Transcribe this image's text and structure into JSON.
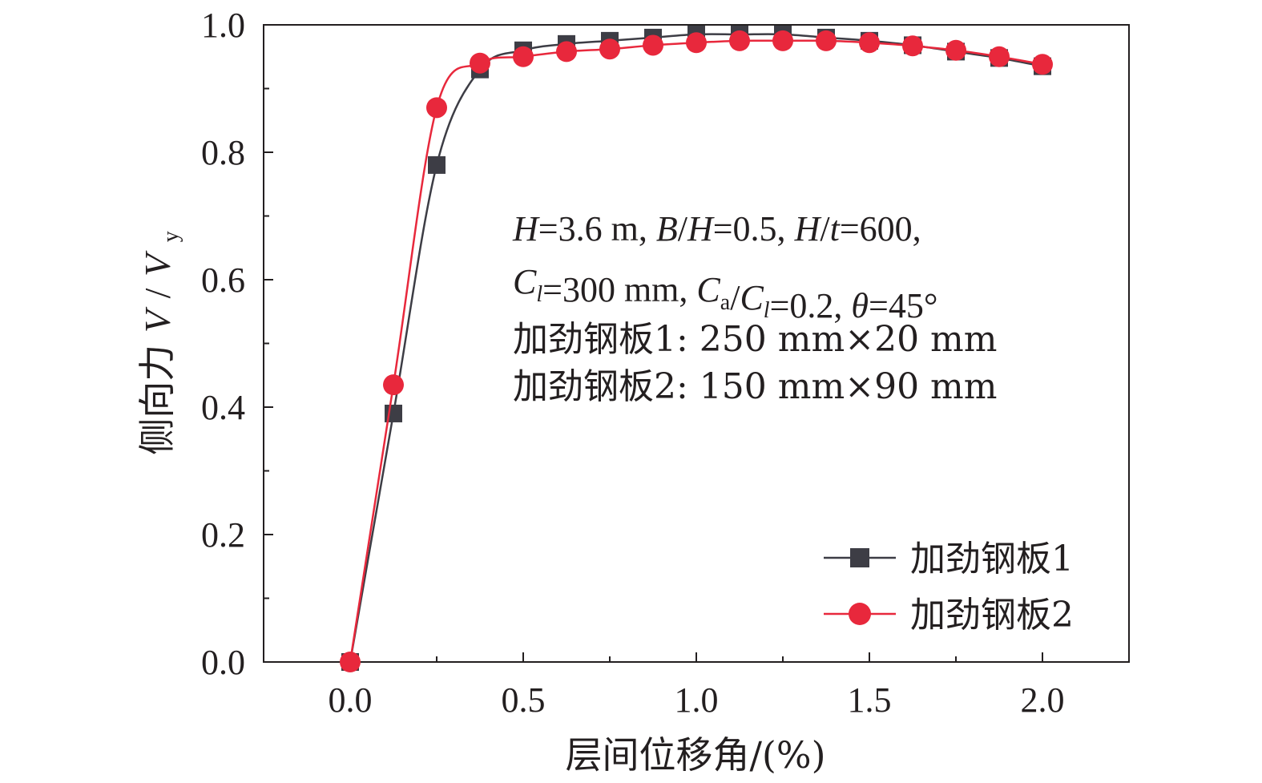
{
  "chart_data": {
    "type": "line",
    "xlabel": "层间位移角/(%)",
    "ylabel": "侧向力 V/V_y",
    "ylabel_parts": {
      "prefix": "侧向力",
      "var1": "V",
      "slash": "/",
      "var2": "V",
      "sub": "y"
    },
    "xlim": [
      -0.25,
      2.25
    ],
    "ylim": [
      0.0,
      1.0
    ],
    "xticks": [
      0.0,
      0.5,
      1.0,
      1.5,
      2.0
    ],
    "xtick_labels": [
      "0.0",
      "0.5",
      "1.0",
      "1.5",
      "2.0"
    ],
    "yticks": [
      0.0,
      0.2,
      0.4,
      0.6,
      0.8,
      1.0
    ],
    "ytick_labels": [
      "0.0",
      "0.2",
      "0.4",
      "0.6",
      "0.8",
      "1.0"
    ],
    "grid": false,
    "legend_position": "bottom-right",
    "series": [
      {
        "name": "加劲钢板1",
        "marker": "square",
        "color": "#3d3d45",
        "x": [
          0.0,
          0.125,
          0.25,
          0.375,
          0.5,
          0.625,
          0.75,
          0.875,
          1.0,
          1.125,
          1.25,
          1.375,
          1.5,
          1.625,
          1.75,
          1.875,
          2.0
        ],
        "y": [
          0.0,
          0.39,
          0.78,
          0.93,
          0.96,
          0.97,
          0.975,
          0.98,
          0.985,
          0.985,
          0.985,
          0.98,
          0.975,
          0.968,
          0.958,
          0.948,
          0.935
        ]
      },
      {
        "name": "加劲钢板2",
        "marker": "circle",
        "color": "#e8283c",
        "x": [
          0.0,
          0.125,
          0.25,
          0.375,
          0.5,
          0.625,
          0.75,
          0.875,
          1.0,
          1.125,
          1.25,
          1.375,
          1.5,
          1.625,
          1.75,
          1.875,
          2.0
        ],
        "y": [
          0.0,
          0.435,
          0.87,
          0.94,
          0.95,
          0.958,
          0.962,
          0.968,
          0.972,
          0.975,
          0.975,
          0.975,
          0.972,
          0.967,
          0.96,
          0.95,
          0.938
        ]
      }
    ],
    "annotations": [
      [
        {
          "t": "H",
          "i": true
        },
        {
          "t": "=3.6 m, "
        },
        {
          "t": "B",
          "i": true
        },
        {
          "t": "/"
        },
        {
          "t": "H",
          "i": true
        },
        {
          "t": "=0.5, "
        },
        {
          "t": "H",
          "i": true
        },
        {
          "t": "/"
        },
        {
          "t": "t",
          "i": true
        },
        {
          "t": "=600,"
        }
      ],
      [
        {
          "t": "C",
          "i": true
        },
        {
          "t": "l",
          "i": true,
          "sub": true
        },
        {
          "t": "=300 mm, "
        },
        {
          "t": "C",
          "i": true
        },
        {
          "t": "a",
          "sub": true
        },
        {
          "t": "/"
        },
        {
          "t": "C",
          "i": true
        },
        {
          "t": "l",
          "i": true,
          "sub": true
        },
        {
          "t": "=0.2, "
        },
        {
          "t": "θ",
          "i": true
        },
        {
          "t": "=45°"
        }
      ],
      [
        {
          "t": "加劲钢板1: 250 mm×20 mm"
        }
      ],
      [
        {
          "t": "加劲钢板2: 150 mm×90 mm"
        }
      ]
    ]
  }
}
